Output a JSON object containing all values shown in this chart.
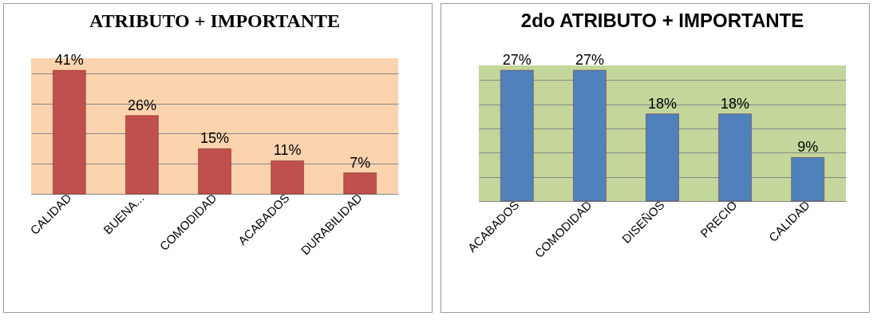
{
  "chart_data": [
    {
      "type": "bar",
      "title": "ATRIBUTO + IMPORTANTE",
      "categories": [
        "CALIDAD",
        "BUENA...",
        "COMODIDAD",
        "ACABADOS",
        "DURABILIDAD"
      ],
      "values": [
        41,
        26,
        15,
        11,
        7
      ],
      "color": "#c0504d",
      "value_labels": [
        "41%",
        "26%",
        "15%",
        "11%",
        "7%"
      ],
      "grid": "y",
      "tick_labels": "x"
    },
    {
      "type": "bar",
      "title": "2do ATRIBUTO + IMPORTANTE",
      "categories": [
        "ACABADOS",
        "COMODIDAD",
        "DISEÑOS",
        "PRECIO",
        "CALIDAD"
      ],
      "values": [
        27,
        27,
        18,
        18,
        9
      ],
      "color": "#4f81bd",
      "value_labels": [
        "27%",
        "27%",
        "18%",
        "18%",
        "9%"
      ],
      "grid": "y",
      "tick_labels": "x"
    }
  ]
}
